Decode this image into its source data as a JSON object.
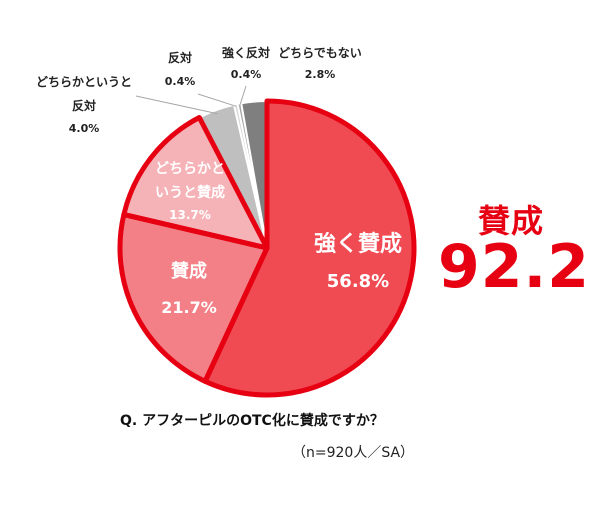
{
  "chart_data": {
    "type": "pie",
    "slices": [
      {
        "label": "強く賛成",
        "value": 56.8,
        "value_label": "56.8%",
        "color": "#f04a52"
      },
      {
        "label": "賛成",
        "value": 21.7,
        "value_label": "21.7%",
        "color": "#f38087"
      },
      {
        "label": "どちらかといううと賛成",
        "display_lines": [
          "どちらかと",
          "いうと賛成"
        ],
        "value": 13.7,
        "value_label": "13.7%",
        "color": "#f6b3b7"
      },
      {
        "label": "どちらかというと反対",
        "display_lines": [
          "どちらかというと",
          "反対"
        ],
        "value": 4.0,
        "value_label": "4.0%",
        "color": "#bfbfbf"
      },
      {
        "label": "反対",
        "display_lines": [
          "反対"
        ],
        "value": 0.4,
        "value_label": "0.4%",
        "color": "#d9d9d9"
      },
      {
        "label": "強く反対",
        "display_lines": [
          "強く反対"
        ],
        "value": 0.4,
        "value_label": "0.4%",
        "color": "#a6a6a6"
      },
      {
        "label": "どちらでもない",
        "display_lines": [
          "どちらでもない"
        ],
        "value": 2.8,
        "value_label": "2.8%",
        "color": "#7f7f7f"
      }
    ],
    "highlight_outline_color": "#e60012"
  },
  "callout": {
    "label": "賛成",
    "value": "92.2",
    "unit": "%"
  },
  "question": "Q. アフターピルのOTC化に賛成ですか？",
  "sample": "（n=920人／SA）"
}
